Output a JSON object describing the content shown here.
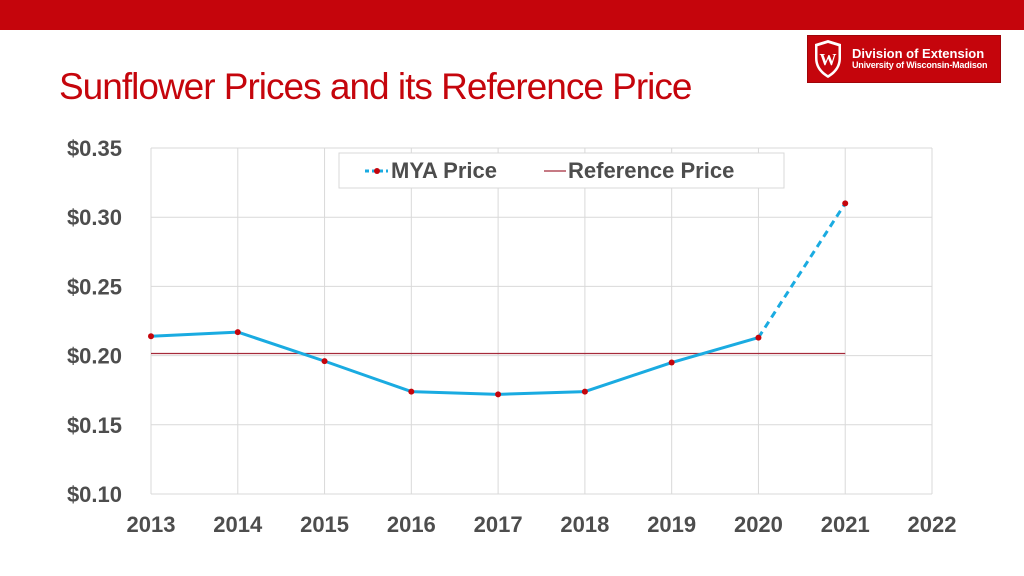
{
  "header": {
    "title": "Sunflower Prices and its Reference Price",
    "bar_color": "#c5050c"
  },
  "logo": {
    "line1": "Division of Extension",
    "line2": "University of Wisconsin-Madison",
    "crest_letter": "W",
    "icon": "uw-crest-icon"
  },
  "chart_data": {
    "type": "line",
    "title": "",
    "xlabel": "",
    "ylabel": "",
    "x": [
      2013,
      2014,
      2015,
      2016,
      2017,
      2018,
      2019,
      2020,
      2021
    ],
    "x_ticks": [
      "2013",
      "2014",
      "2015",
      "2016",
      "2017",
      "2018",
      "2019",
      "2020",
      "2021",
      "2022"
    ],
    "xlim": [
      2013,
      2022
    ],
    "ylim": [
      0.1,
      0.35
    ],
    "y_ticks": [
      {
        "value": 0.35,
        "label": "$0.35"
      },
      {
        "value": 0.3,
        "label": "$0.30"
      },
      {
        "value": 0.25,
        "label": "$0.25"
      },
      {
        "value": 0.2,
        "label": "$0.20"
      },
      {
        "value": 0.15,
        "label": "$0.15"
      },
      {
        "value": 0.1,
        "label": "$0.10"
      }
    ],
    "grid": true,
    "legend_position": "top-center",
    "series": [
      {
        "name": "MYA Price",
        "values": [
          0.214,
          0.217,
          0.196,
          0.174,
          0.172,
          0.174,
          0.195,
          0.213,
          0.31
        ],
        "color": "#1aabe1",
        "marker_color": "#c5050c",
        "dashed_from_index": 7
      },
      {
        "name": "Reference Price",
        "x": [
          2013,
          2021
        ],
        "values": [
          0.2015,
          0.2015
        ],
        "color": "#a52a3a"
      }
    ]
  }
}
